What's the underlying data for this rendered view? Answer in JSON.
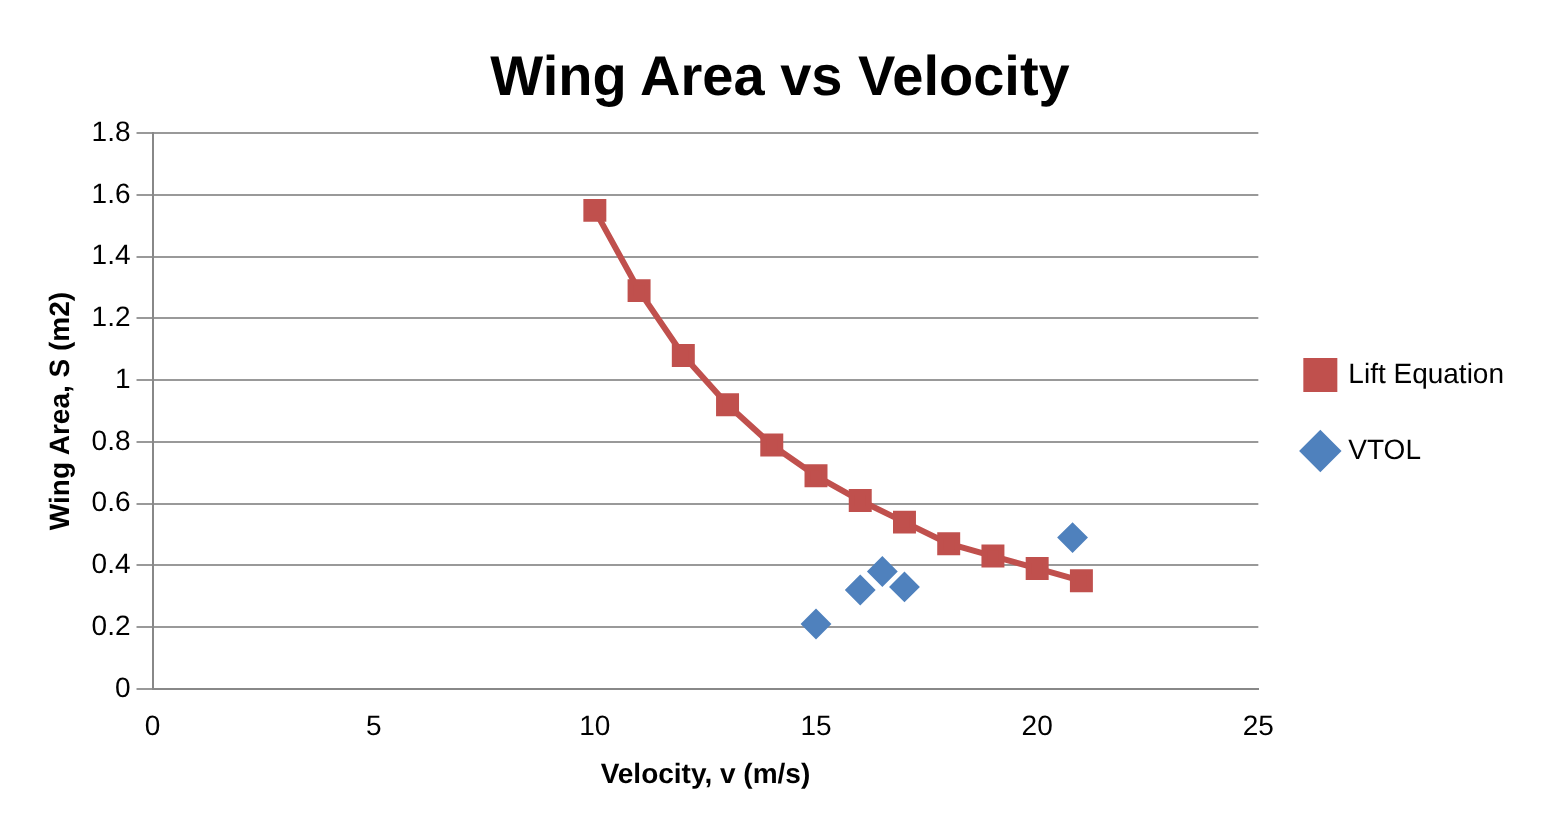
{
  "chart_data": {
    "type": "scatter",
    "title": "Wing Area vs Velocity",
    "xlabel": "Velocity, v (m/s)",
    "ylabel": "Wing Area, S (m2)",
    "xlim": [
      0,
      25
    ],
    "xticks": [
      0,
      5,
      10,
      15,
      20,
      25
    ],
    "ylim": [
      0,
      1.8
    ],
    "yticks": [
      0,
      0.2,
      0.4,
      0.6,
      0.8,
      1,
      1.2,
      1.4,
      1.6,
      1.8
    ],
    "grid": "y",
    "legend": "right",
    "series": [
      {
        "name": "Lift Equation",
        "type": "line",
        "color": "#c0504d",
        "marker": "square",
        "line_style": "solid",
        "x": [
          10,
          11,
          12,
          13,
          14,
          15,
          16,
          17,
          18,
          19,
          20,
          21
        ],
        "values": [
          1.55,
          1.29,
          1.08,
          0.92,
          0.79,
          0.69,
          0.61,
          0.54,
          0.47,
          0.43,
          0.39,
          0.35
        ]
      },
      {
        "name": "VTOL",
        "type": "scatter",
        "color": "#4f81bd",
        "marker": "diamond",
        "x": [
          15,
          16,
          16.5,
          17,
          20.8
        ],
        "values": [
          0.21,
          0.32,
          0.38,
          0.33,
          0.49
        ]
      }
    ]
  }
}
